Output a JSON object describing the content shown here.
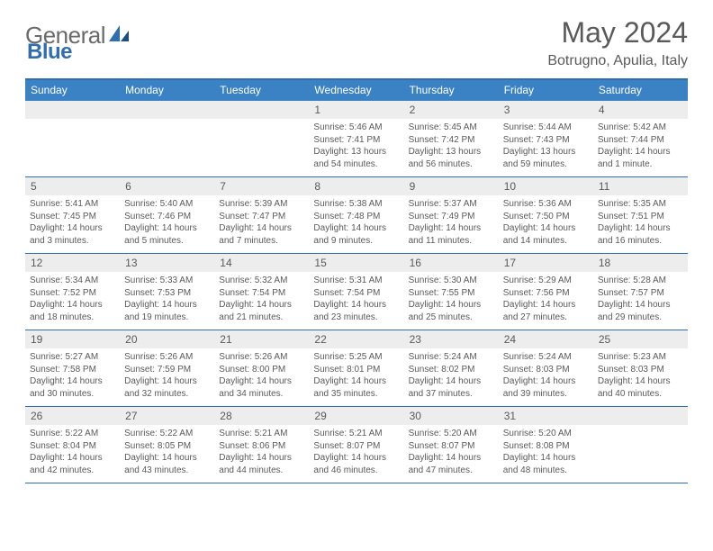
{
  "logo": {
    "text1": "General",
    "text2": "Blue"
  },
  "title": "May 2024",
  "location": "Botrugno, Apulia, Italy",
  "colors": {
    "header_bg": "#3b82c4",
    "border": "#2f6fb0",
    "daynum_bg": "#ededed",
    "text": "#5a5a5a",
    "page_bg": "#ffffff"
  },
  "dayNames": [
    "Sunday",
    "Monday",
    "Tuesday",
    "Wednesday",
    "Thursday",
    "Friday",
    "Saturday"
  ],
  "weeks": [
    [
      null,
      null,
      null,
      {
        "n": "1",
        "sr": "5:46 AM",
        "ss": "7:41 PM",
        "dl": "13 hours and 54 minutes."
      },
      {
        "n": "2",
        "sr": "5:45 AM",
        "ss": "7:42 PM",
        "dl": "13 hours and 56 minutes."
      },
      {
        "n": "3",
        "sr": "5:44 AM",
        "ss": "7:43 PM",
        "dl": "13 hours and 59 minutes."
      },
      {
        "n": "4",
        "sr": "5:42 AM",
        "ss": "7:44 PM",
        "dl": "14 hours and 1 minute."
      }
    ],
    [
      {
        "n": "5",
        "sr": "5:41 AM",
        "ss": "7:45 PM",
        "dl": "14 hours and 3 minutes."
      },
      {
        "n": "6",
        "sr": "5:40 AM",
        "ss": "7:46 PM",
        "dl": "14 hours and 5 minutes."
      },
      {
        "n": "7",
        "sr": "5:39 AM",
        "ss": "7:47 PM",
        "dl": "14 hours and 7 minutes."
      },
      {
        "n": "8",
        "sr": "5:38 AM",
        "ss": "7:48 PM",
        "dl": "14 hours and 9 minutes."
      },
      {
        "n": "9",
        "sr": "5:37 AM",
        "ss": "7:49 PM",
        "dl": "14 hours and 11 minutes."
      },
      {
        "n": "10",
        "sr": "5:36 AM",
        "ss": "7:50 PM",
        "dl": "14 hours and 14 minutes."
      },
      {
        "n": "11",
        "sr": "5:35 AM",
        "ss": "7:51 PM",
        "dl": "14 hours and 16 minutes."
      }
    ],
    [
      {
        "n": "12",
        "sr": "5:34 AM",
        "ss": "7:52 PM",
        "dl": "14 hours and 18 minutes."
      },
      {
        "n": "13",
        "sr": "5:33 AM",
        "ss": "7:53 PM",
        "dl": "14 hours and 19 minutes."
      },
      {
        "n": "14",
        "sr": "5:32 AM",
        "ss": "7:54 PM",
        "dl": "14 hours and 21 minutes."
      },
      {
        "n": "15",
        "sr": "5:31 AM",
        "ss": "7:54 PM",
        "dl": "14 hours and 23 minutes."
      },
      {
        "n": "16",
        "sr": "5:30 AM",
        "ss": "7:55 PM",
        "dl": "14 hours and 25 minutes."
      },
      {
        "n": "17",
        "sr": "5:29 AM",
        "ss": "7:56 PM",
        "dl": "14 hours and 27 minutes."
      },
      {
        "n": "18",
        "sr": "5:28 AM",
        "ss": "7:57 PM",
        "dl": "14 hours and 29 minutes."
      }
    ],
    [
      {
        "n": "19",
        "sr": "5:27 AM",
        "ss": "7:58 PM",
        "dl": "14 hours and 30 minutes."
      },
      {
        "n": "20",
        "sr": "5:26 AM",
        "ss": "7:59 PM",
        "dl": "14 hours and 32 minutes."
      },
      {
        "n": "21",
        "sr": "5:26 AM",
        "ss": "8:00 PM",
        "dl": "14 hours and 34 minutes."
      },
      {
        "n": "22",
        "sr": "5:25 AM",
        "ss": "8:01 PM",
        "dl": "14 hours and 35 minutes."
      },
      {
        "n": "23",
        "sr": "5:24 AM",
        "ss": "8:02 PM",
        "dl": "14 hours and 37 minutes."
      },
      {
        "n": "24",
        "sr": "5:24 AM",
        "ss": "8:03 PM",
        "dl": "14 hours and 39 minutes."
      },
      {
        "n": "25",
        "sr": "5:23 AM",
        "ss": "8:03 PM",
        "dl": "14 hours and 40 minutes."
      }
    ],
    [
      {
        "n": "26",
        "sr": "5:22 AM",
        "ss": "8:04 PM",
        "dl": "14 hours and 42 minutes."
      },
      {
        "n": "27",
        "sr": "5:22 AM",
        "ss": "8:05 PM",
        "dl": "14 hours and 43 minutes."
      },
      {
        "n": "28",
        "sr": "5:21 AM",
        "ss": "8:06 PM",
        "dl": "14 hours and 44 minutes."
      },
      {
        "n": "29",
        "sr": "5:21 AM",
        "ss": "8:07 PM",
        "dl": "14 hours and 46 minutes."
      },
      {
        "n": "30",
        "sr": "5:20 AM",
        "ss": "8:07 PM",
        "dl": "14 hours and 47 minutes."
      },
      {
        "n": "31",
        "sr": "5:20 AM",
        "ss": "8:08 PM",
        "dl": "14 hours and 48 minutes."
      },
      null
    ]
  ],
  "labels": {
    "sunrise": "Sunrise:",
    "sunset": "Sunset:",
    "daylight": "Daylight:"
  }
}
